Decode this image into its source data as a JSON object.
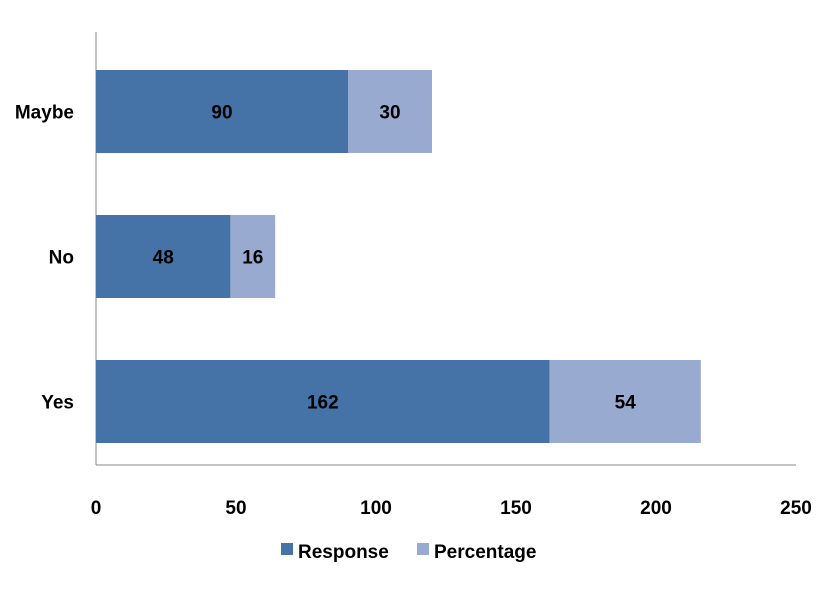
{
  "chart_data": {
    "type": "bar",
    "orientation": "horizontal",
    "stacked": true,
    "categories": [
      "Maybe",
      "No",
      "Yes"
    ],
    "series": [
      {
        "name": "Response",
        "values": [
          90,
          48,
          162
        ],
        "color": "#4572A7"
      },
      {
        "name": "Percentage",
        "values": [
          30,
          16,
          54
        ],
        "color": "#98AACF"
      }
    ],
    "xlim": [
      0,
      250
    ],
    "xticks": [
      0,
      50,
      100,
      150,
      200,
      250
    ],
    "grid": false,
    "legend_position": "bottom",
    "title": "",
    "xlabel": "",
    "ylabel": ""
  }
}
